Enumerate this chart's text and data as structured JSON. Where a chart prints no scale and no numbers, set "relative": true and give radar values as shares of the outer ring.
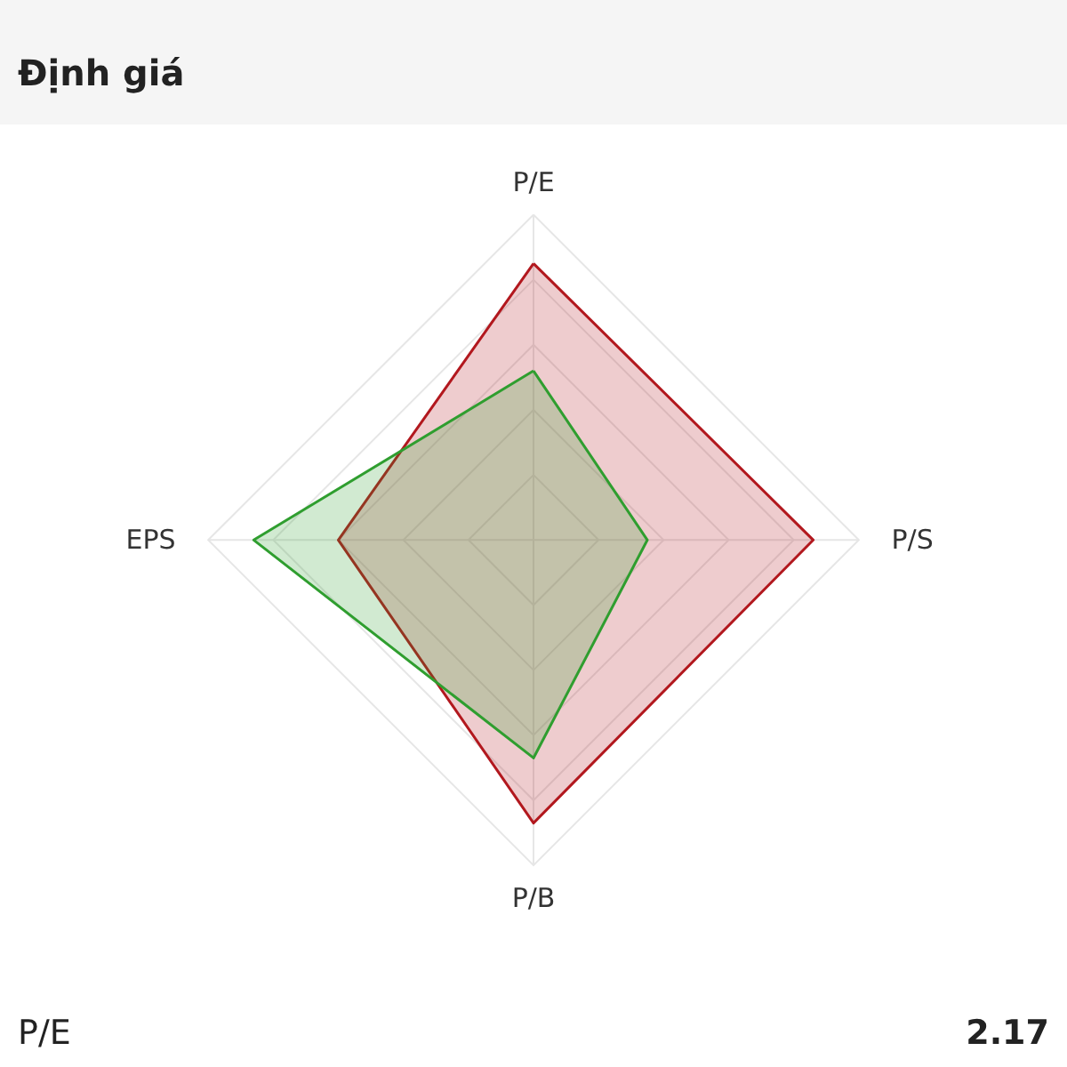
{
  "chart_data": {
    "type": "radar",
    "title": "Định giá",
    "categories": [
      "P/E",
      "P/S",
      "P/B",
      "EPS"
    ],
    "relative": true,
    "grid": true,
    "series": [
      {
        "color": "#b2181e",
        "values": [
          0.85,
          0.86,
          0.87,
          0.6
        ]
      },
      {
        "color": "#2f9e2f",
        "values": [
          0.52,
          0.35,
          0.67,
          0.86
        ]
      }
    ],
    "annotations": [
      "P/E",
      "2.17"
    ]
  }
}
